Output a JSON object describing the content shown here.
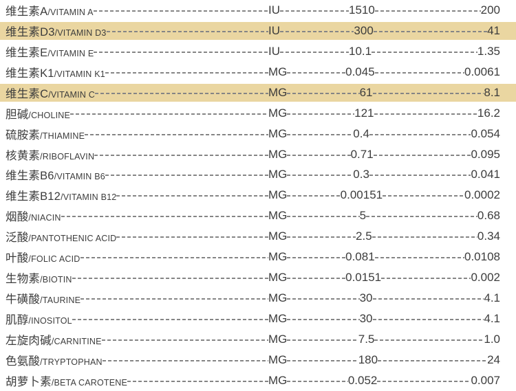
{
  "table": {
    "highlight_color": "#ead6a1",
    "columns": [
      "nutrient",
      "unit",
      "value1",
      "value2"
    ],
    "rows": [
      {
        "zh": "维生素A",
        "en": "/VITAMIN A",
        "unit": "IU",
        "value1": "1510",
        "value2": "200",
        "highlight": false
      },
      {
        "zh": "维生素D3",
        "en": "/VITAMIN D3",
        "unit": "IU",
        "value1": "300",
        "value2": "41",
        "highlight": true
      },
      {
        "zh": "维生素E",
        "en": "/VITAMIN E",
        "unit": "IU",
        "value1": "10.1",
        "value2": "1.35",
        "highlight": false
      },
      {
        "zh": "维生素K1",
        "en": "/VITAMIN K1",
        "unit": "MG",
        "value1": "0.045",
        "value2": "0.0061",
        "highlight": false
      },
      {
        "zh": "维生素C",
        "en": "/VITAMIN C",
        "unit": "MG",
        "value1": "61",
        "value2": "8.1",
        "highlight": true
      },
      {
        "zh": "胆碱",
        "en": "/CHOLINE",
        "unit": "MG",
        "value1": "121",
        "value2": "16.2",
        "highlight": false
      },
      {
        "zh": "硫胺素",
        "en": "/THIAMINE",
        "unit": "MG",
        "value1": "0.4",
        "value2": "0.054",
        "highlight": false
      },
      {
        "zh": "核黄素",
        "en": "/RIBOFLAVIN",
        "unit": "MG",
        "value1": "0.71",
        "value2": "0.095",
        "highlight": false
      },
      {
        "zh": "维生素B6",
        "en": "/VITAMIN B6",
        "unit": "MG",
        "value1": "0.3",
        "value2": "0.041",
        "highlight": false
      },
      {
        "zh": "维生素B12",
        "en": "/VITAMIN B12",
        "unit": "MG",
        "value1": "0.00151",
        "value2": "0.0002",
        "highlight": false
      },
      {
        "zh": "烟酸",
        "en": "/NIACIN",
        "unit": "MG",
        "value1": "5",
        "value2": "0.68",
        "highlight": false
      },
      {
        "zh": "泛酸",
        "en": "/PANTOTHENIC ACID",
        "unit": "MG",
        "value1": "2.5",
        "value2": "0.34",
        "highlight": false
      },
      {
        "zh": "叶酸",
        "en": "/FOLIC ACID",
        "unit": "MG",
        "value1": "0.081",
        "value2": "0.0108",
        "highlight": false
      },
      {
        "zh": "生物素",
        "en": "/BIOTIN",
        "unit": "MG",
        "value1": "0.0151",
        "value2": "0.002",
        "highlight": false
      },
      {
        "zh": "牛磺酸",
        "en": "/TAURINE",
        "unit": "MG",
        "value1": "30",
        "value2": "4.1",
        "highlight": false
      },
      {
        "zh": "肌醇",
        "en": "/INOSITOL",
        "unit": "MG",
        "value1": "30",
        "value2": "4.1",
        "highlight": false
      },
      {
        "zh": "左旋肉碱",
        "en": "/CARNITINE",
        "unit": "MG",
        "value1": "7.5",
        "value2": "1.0",
        "highlight": false
      },
      {
        "zh": "色氨酸",
        "en": "/TRYPTOPHAN",
        "unit": "MG",
        "value1": "180",
        "value2": "24",
        "highlight": false
      },
      {
        "zh": "胡萝卜素",
        "en": "/BETA CAROTENE",
        "unit": "MG",
        "value1": "0.052",
        "value2": "0.007",
        "highlight": false
      }
    ]
  }
}
